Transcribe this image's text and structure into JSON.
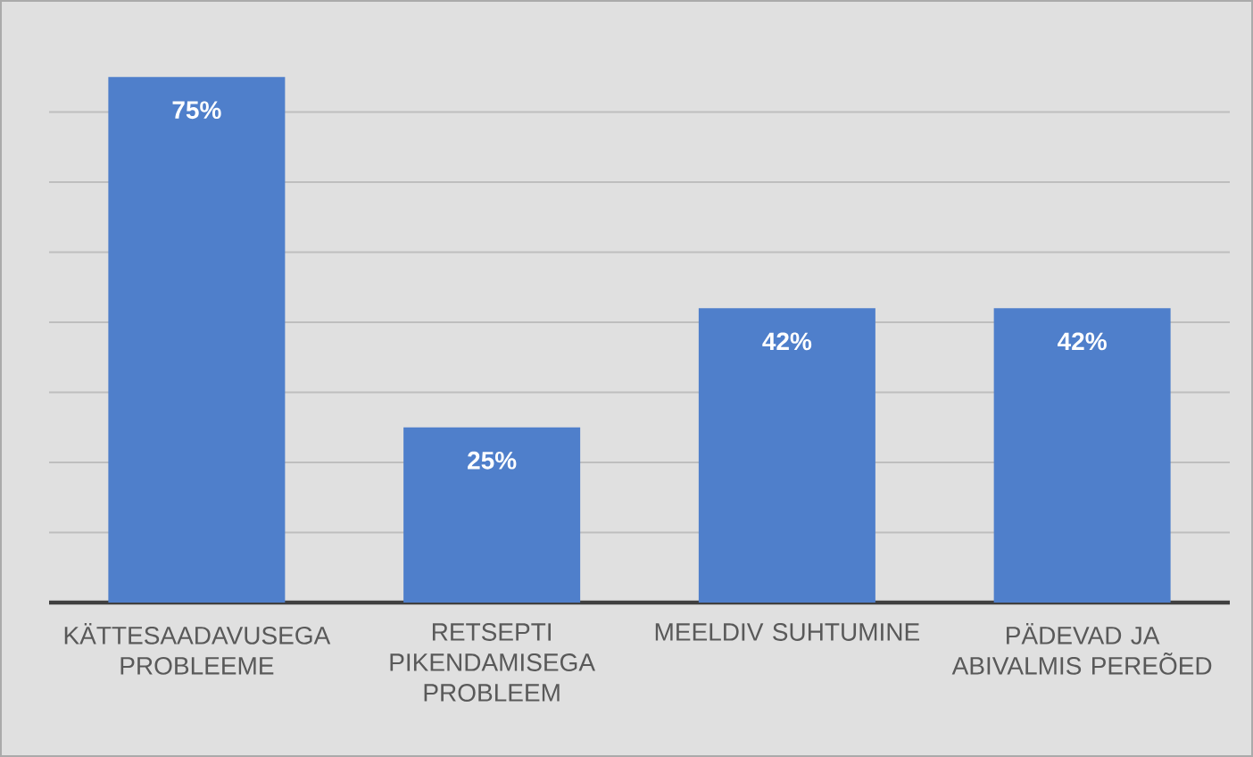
{
  "chart_data": {
    "type": "bar",
    "categories": [
      "KÄTTESAADAVUSEGA PROBLEEME",
      "RETSEPTI PIKENDAMISEGA PROBLEEM",
      "MEELDIV SUHTUMINE",
      "PÄDEVAD JA ABIVALMIS PEREÕED"
    ],
    "values": [
      75,
      25,
      42,
      42
    ],
    "value_labels": [
      "75%",
      "25%",
      "42%",
      "42%"
    ],
    "color": "#4f7fcb",
    "grid": "y",
    "tick_labels": "x"
  }
}
